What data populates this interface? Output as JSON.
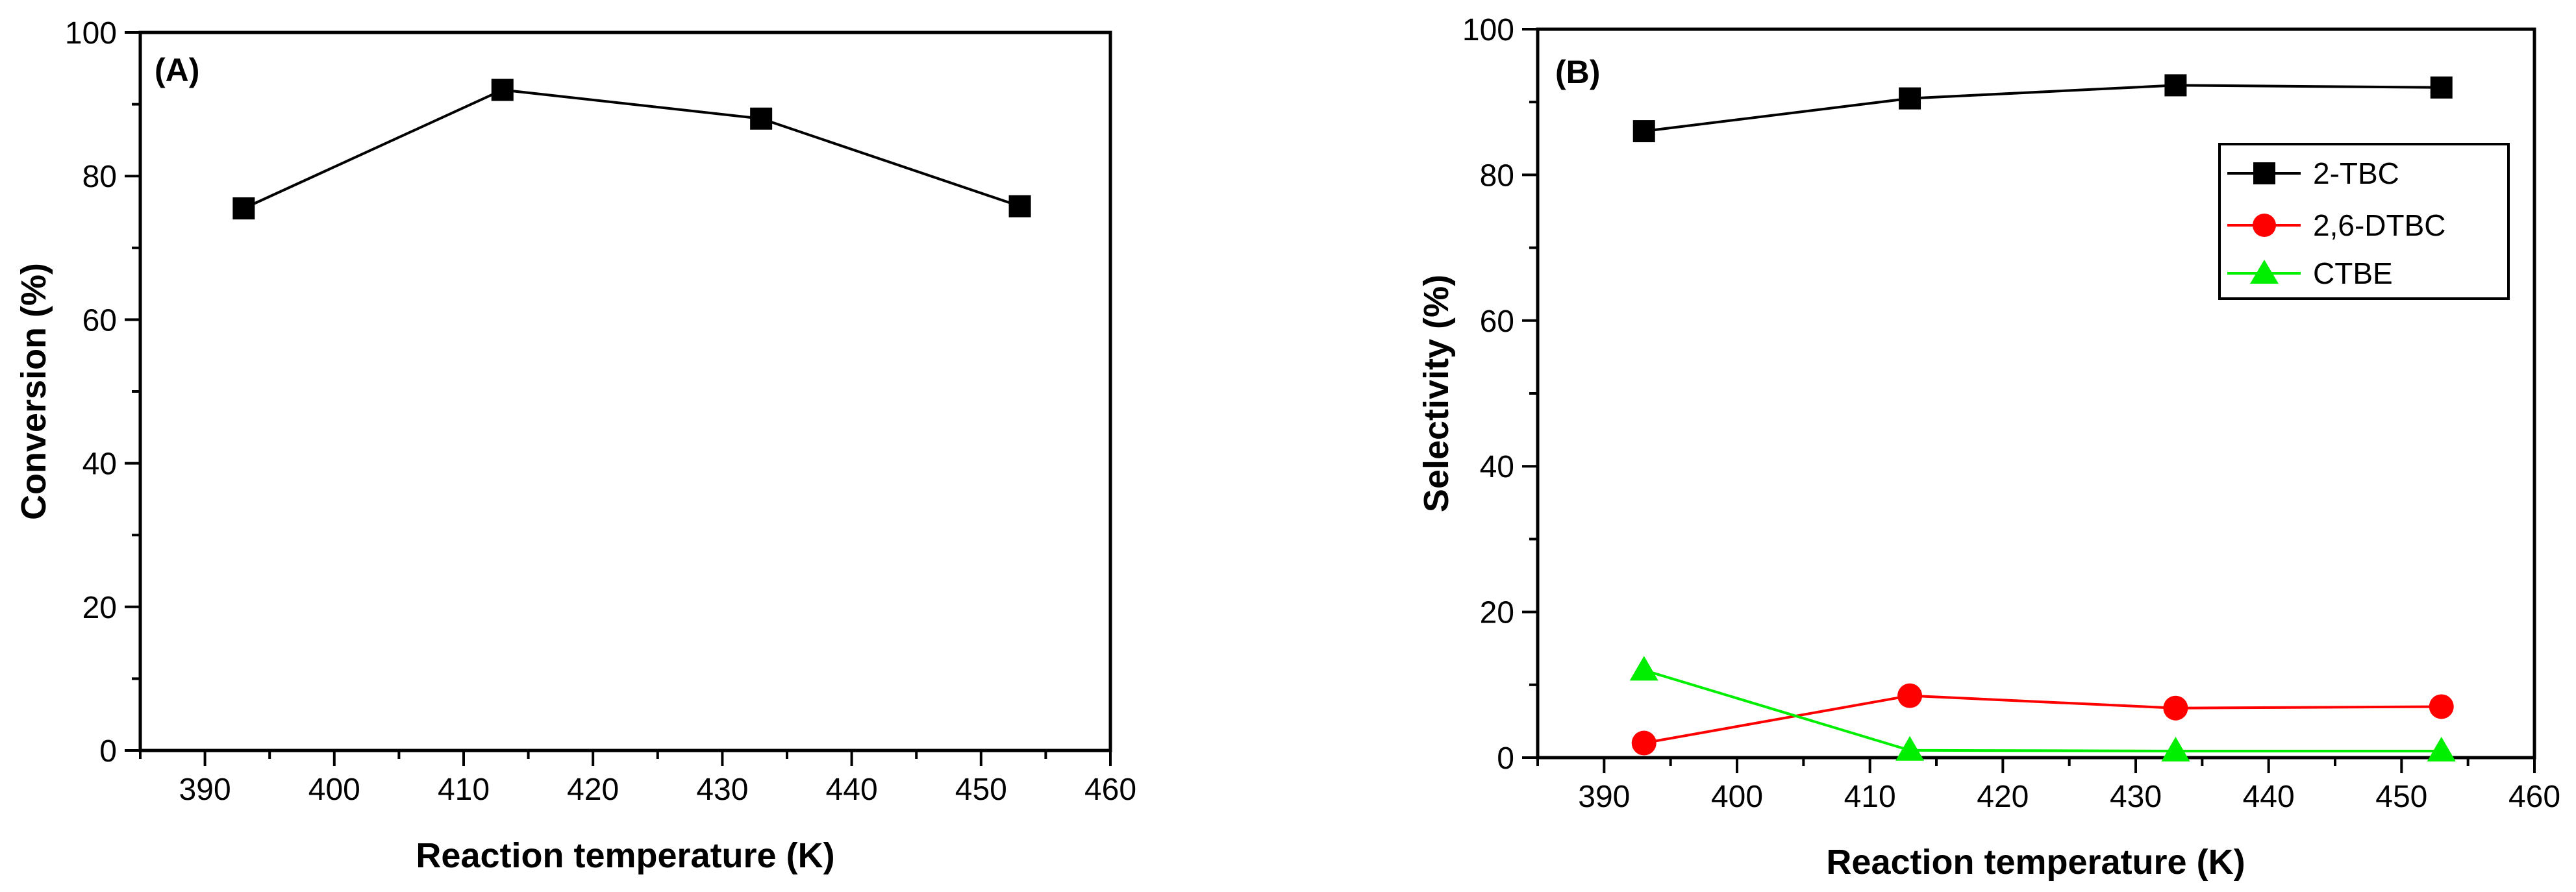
{
  "chart_data": [
    {
      "type": "line",
      "panel_label": "(A)",
      "xlabel": "Reaction temperature (K)",
      "ylabel": "Conversion (%)",
      "xlim": [
        385,
        460
      ],
      "ylim": [
        0,
        100
      ],
      "xticks": [
        390,
        400,
        410,
        420,
        430,
        440,
        450,
        460
      ],
      "yticks": [
        0,
        20,
        40,
        60,
        80,
        100
      ],
      "x": [
        393,
        413,
        433,
        453
      ],
      "series": [
        {
          "name": "Conversion",
          "color": "#000000",
          "marker": "square",
          "values": [
            75.5,
            92,
            88,
            75.8
          ]
        }
      ]
    },
    {
      "type": "line",
      "panel_label": "(B)",
      "xlabel": "Reaction temperature (K)",
      "ylabel": "Selectivity (%)",
      "xlim": [
        385,
        460
      ],
      "ylim": [
        0,
        100
      ],
      "xticks": [
        390,
        400,
        410,
        420,
        430,
        440,
        450,
        460
      ],
      "yticks": [
        0,
        20,
        40,
        60,
        80,
        100
      ],
      "legend_position": "top-right",
      "x": [
        393,
        413,
        433,
        453
      ],
      "series": [
        {
          "name": "2-TBC",
          "color": "#000000",
          "marker": "square",
          "values": [
            86,
            90.5,
            92.3,
            92
          ]
        },
        {
          "name": "2,6-DTBC",
          "color": "#ff0000",
          "marker": "circle",
          "values": [
            2,
            8.5,
            6.8,
            7
          ]
        },
        {
          "name": "CTBE",
          "color": "#00ee00",
          "marker": "triangle",
          "values": [
            12,
            1,
            0.9,
            0.9
          ]
        }
      ]
    }
  ]
}
